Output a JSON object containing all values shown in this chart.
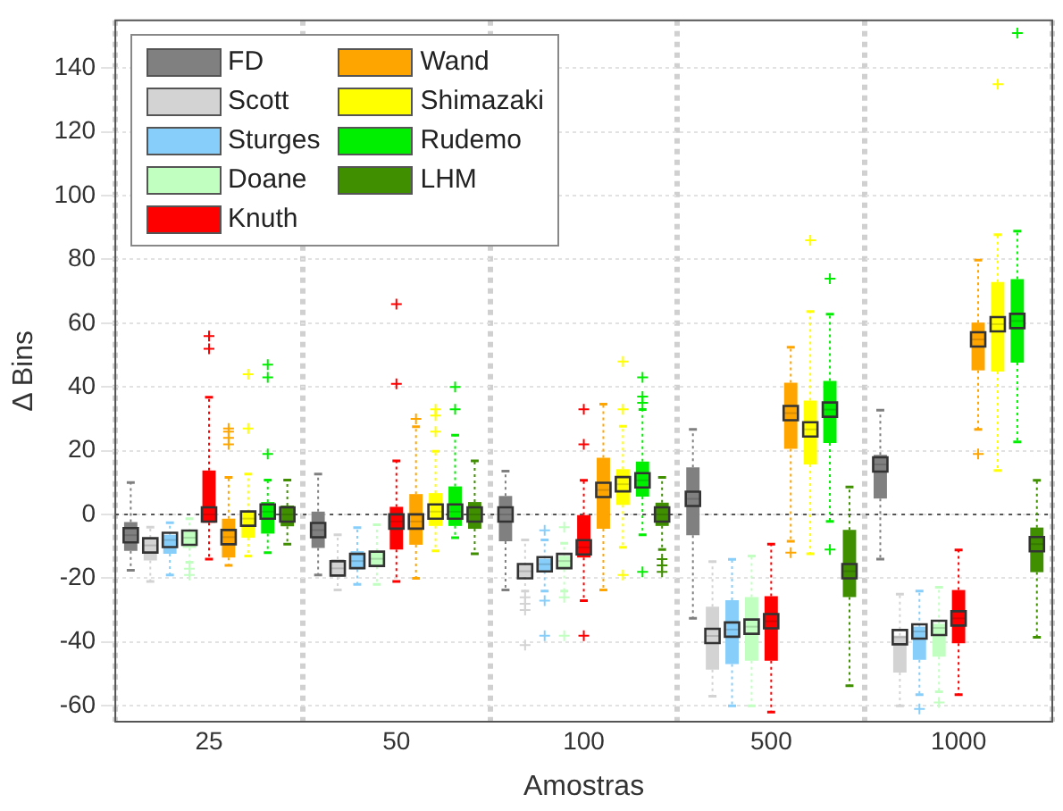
{
  "chart_data": {
    "type": "box",
    "xlabel": "Amostras",
    "ylabel": "Δ Bins",
    "categories": [
      "25",
      "50",
      "100",
      "500",
      "1000"
    ],
    "ylim": [
      -65,
      155
    ],
    "yticks": [
      -60,
      -40,
      -20,
      0,
      20,
      40,
      60,
      80,
      100,
      120,
      140
    ],
    "grid": true,
    "legend": "top left",
    "marker": "square",
    "ref_lines": [
      {
        "axis": "y",
        "value": 0,
        "line_style": "dotted",
        "color": "#555555"
      }
    ],
    "series": [
      {
        "name": "FD",
        "color": "#808080",
        "boxes": [
          {
            "low": -17.5,
            "q1": -11.4,
            "median": -6.5,
            "q3": -2.4,
            "high": 10,
            "mean": -6.5
          },
          {
            "low": -19,
            "q1": -10.5,
            "median": -4.9,
            "q3": 0.9,
            "high": 12.7,
            "mean": -4.9
          },
          {
            "low": -23.7,
            "q1": -8.4,
            "median": 0,
            "q3": 5.8,
            "high": 13.6,
            "mean": 0
          },
          {
            "low": -32.6,
            "q1": -6.5,
            "median": 4.9,
            "q3": 14.8,
            "high": 26.7,
            "mean": 4.9
          },
          {
            "low": -14,
            "q1": 5,
            "median": 15.7,
            "q3": 18.7,
            "high": 32.7,
            "mean": 15.7
          }
        ]
      },
      {
        "name": "Scott",
        "color": "#d3d3d3",
        "boxes": [
          {
            "low": -21,
            "q1": -14.4,
            "median": -9.7,
            "q3": -7.3,
            "high": -4,
            "mean": -9.7
          },
          {
            "low": -23.7,
            "q1": -19.6,
            "median": -16.9,
            "q3": -14,
            "high": -6.4,
            "mean": -16.9
          },
          {
            "low": -24,
            "q1": -19.6,
            "median": -17.8,
            "q3": -15.9,
            "high": -8,
            "mean": -17.8,
            "outliers": [
              -26,
              -28,
              -30,
              -41
            ]
          },
          {
            "low": -57,
            "q1": -48.7,
            "median": -38.1,
            "q3": -28.9,
            "high": -14.8,
            "mean": -38.1
          },
          {
            "low": -60,
            "q1": -49.6,
            "median": -38.5,
            "q3": -38,
            "high": -25,
            "mean": -38.5
          }
        ]
      },
      {
        "name": "Sturges",
        "color": "#87cefa",
        "boxes": [
          {
            "low": -19,
            "q1": -12.3,
            "median": -8,
            "q3": -6.4,
            "high": -2.6,
            "mean": -8
          },
          {
            "low": -21.9,
            "q1": -17.2,
            "median": -14.6,
            "q3": -11.5,
            "high": -4.1,
            "mean": -14.6
          },
          {
            "low": -24,
            "q1": -17.8,
            "median": -15.6,
            "q3": -13.9,
            "high": -8,
            "mean": -15.6,
            "outliers": [
              -5,
              -27,
              -38
            ]
          },
          {
            "low": -60,
            "q1": -46.9,
            "median": -36.1,
            "q3": -26.9,
            "high": -14.1,
            "mean": -36.1
          },
          {
            "low": -56.5,
            "q1": -45.6,
            "median": -36.7,
            "q3": -35.2,
            "high": -24,
            "mean": -36.7,
            "outliers": [
              -61
            ]
          }
        ]
      },
      {
        "name": "Doane",
        "color": "#c0ffc0",
        "boxes": [
          {
            "low": -15,
            "q1": -10.5,
            "median": -7.3,
            "q3": -5.4,
            "high": -1.3,
            "mean": -7.3,
            "outliers": [
              -17,
              -19
            ]
          },
          {
            "low": -21.9,
            "q1": -16.3,
            "median": -13.9,
            "q3": -11.5,
            "high": -3.2,
            "mean": -13.9
          },
          {
            "low": -24,
            "q1": -17.2,
            "median": -14.6,
            "q3": -13,
            "high": -9,
            "mean": -14.6,
            "outliers": [
              -4,
              -26,
              -38
            ]
          },
          {
            "low": -60,
            "q1": -45.9,
            "median": -35.2,
            "q3": -25.9,
            "high": -13,
            "mean": -35.2
          },
          {
            "low": -55.6,
            "q1": -44.6,
            "median": -35.6,
            "q3": -34.3,
            "high": -22.8,
            "mean": -35.6,
            "outliers": [
              -59
            ]
          }
        ]
      },
      {
        "name": "Knuth",
        "color": "#ff0000",
        "boxes": [
          {
            "low": -14,
            "q1": -2.6,
            "median": 0,
            "q3": 13.8,
            "high": 36.8,
            "mean": 0,
            "outliers": [
              52,
              56
            ]
          },
          {
            "low": -21,
            "q1": -11,
            "median": -2.2,
            "q3": 2.4,
            "high": 16.8,
            "mean": -2.2,
            "outliers": [
              41,
              66
            ]
          },
          {
            "low": -27,
            "q1": -13.5,
            "median": -10.3,
            "q3": -0.2,
            "high": 10.7,
            "mean": -10.3,
            "outliers": [
              22,
              33,
              -38
            ]
          },
          {
            "low": -62,
            "q1": -45.9,
            "median": -33.5,
            "q3": -25.6,
            "high": -9.3,
            "mean": -33.5
          },
          {
            "low": -56.5,
            "q1": -40.4,
            "median": -32.6,
            "q3": -23.7,
            "high": -11.1,
            "mean": -32.6
          }
        ]
      },
      {
        "name": "Wand",
        "color": "#ffa500",
        "boxes": [
          {
            "low": -16,
            "q1": -13.5,
            "median": -7.1,
            "q3": -1.3,
            "high": 11.6,
            "mean": -7.1,
            "outliers": [
              22,
              24,
              26,
              27
            ]
          },
          {
            "low": -20,
            "q1": -9.5,
            "median": -2.2,
            "q3": 6.4,
            "high": 27.5,
            "mean": -2.2,
            "outliers": [
              30
            ]
          },
          {
            "low": -23.7,
            "q1": -4.5,
            "median": 7.7,
            "q3": 17.8,
            "high": 34.6,
            "mean": 7.7
          },
          {
            "low": -8.4,
            "q1": 20.6,
            "median": 31.8,
            "q3": 41.3,
            "high": 52.5,
            "mean": 31.8,
            "outliers": [
              -12
            ]
          },
          {
            "low": 26.7,
            "q1": 45.2,
            "median": 54.9,
            "q3": 60.2,
            "high": 79.8,
            "mean": 54.9,
            "outliers": [
              19
            ]
          }
        ]
      },
      {
        "name": "Shimazaki",
        "color": "#ffff00",
        "boxes": [
          {
            "low": -13,
            "q1": -7.3,
            "median": -1.3,
            "q3": 0.7,
            "high": 12.7,
            "mean": -1.3,
            "outliers": [
              27,
              44
            ]
          },
          {
            "low": -11.4,
            "q1": -3.6,
            "median": 0.9,
            "q3": 6.7,
            "high": 19.8,
            "mean": 0.9,
            "outliers": [
              26,
              31,
              33
            ]
          },
          {
            "low": -10.3,
            "q1": 3,
            "median": 9.5,
            "q3": 14.2,
            "high": 27.7,
            "mean": 9.5,
            "outliers": [
              33,
              48,
              -19
            ]
          },
          {
            "low": -12.3,
            "q1": 15.7,
            "median": 26.7,
            "q3": 35.7,
            "high": 63.7,
            "mean": 26.7,
            "outliers": [
              86
            ]
          },
          {
            "low": 13.8,
            "q1": 44.8,
            "median": 59.7,
            "q3": 72.9,
            "high": 87.8,
            "mean": 59.7,
            "outliers": [
              135
            ]
          }
        ]
      },
      {
        "name": "Rudemo",
        "color": "#00ee00",
        "boxes": [
          {
            "low": -12,
            "q1": -6,
            "median": 0.9,
            "q3": 3.9,
            "high": 10.8,
            "mean": 0.9,
            "outliers": [
              19,
              43,
              47
            ]
          },
          {
            "low": -7.3,
            "q1": -3.6,
            "median": 0.9,
            "q3": 8.8,
            "high": 24.9,
            "mean": 0.9,
            "outliers": [
              33,
              40
            ]
          },
          {
            "low": -6.4,
            "q1": 5.6,
            "median": 10.7,
            "q3": 16.6,
            "high": 32.9,
            "mean": 10.7,
            "outliers": [
              35,
              37,
              43,
              -18
            ]
          },
          {
            "low": -2.2,
            "q1": 22.4,
            "median": 32.9,
            "q3": 41.9,
            "high": 62.8,
            "mean": 32.9,
            "outliers": [
              74,
              -11
            ]
          },
          {
            "low": 22.8,
            "q1": 47.6,
            "median": 60.7,
            "q3": 73.8,
            "high": 88.9,
            "mean": 60.7,
            "outliers": [
              151
            ]
          }
        ]
      },
      {
        "name": "LHM",
        "color": "#3f8f00",
        "boxes": [
          {
            "low": -9.3,
            "q1": -3.7,
            "median": 0,
            "q3": 2.8,
            "high": 10.8,
            "mean": 0
          },
          {
            "low": -12.3,
            "q1": -4.5,
            "median": 0,
            "q3": 3.9,
            "high": 16.8,
            "mean": 0
          },
          {
            "low": -11,
            "q1": -3.6,
            "median": 0,
            "q3": 3.7,
            "high": 11.6,
            "mean": 0,
            "outliers": [
              -14,
              -16,
              -18
            ]
          },
          {
            "low": -53.7,
            "q1": -25.9,
            "median": -17.8,
            "q3": -4.8,
            "high": 8.6,
            "mean": -17.8
          },
          {
            "low": -38.5,
            "q1": -18.1,
            "median": -9.3,
            "q3": -4.1,
            "high": 10.7,
            "mean": -9.3
          }
        ]
      }
    ]
  }
}
